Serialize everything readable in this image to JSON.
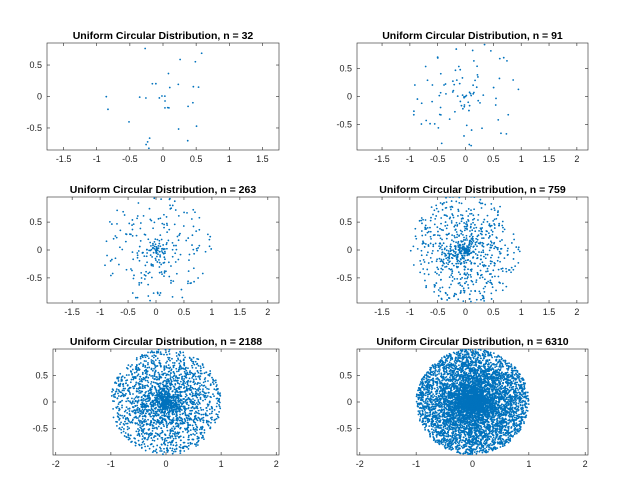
{
  "chart_data": [
    {
      "type": "scatter",
      "title": "Uniform Circular Distribution, n = 32",
      "n": 32,
      "color": "#0072BD",
      "marker": "dot",
      "radius": 1,
      "xlim": [
        -1.75,
        1.75
      ],
      "ylim": [
        -0.85,
        0.85
      ],
      "xticks": [
        -1.5,
        -1,
        -0.5,
        0,
        0.5,
        1,
        1.5
      ],
      "xtick_labels": [
        "-1.5",
        "-1",
        "-0.5",
        "0",
        "0.5",
        "1",
        "1.5"
      ],
      "yticks": [
        0.5,
        0,
        -0.5
      ],
      "ytick_labels": [
        "0.5",
        "0",
        "-0.5"
      ]
    },
    {
      "type": "scatter",
      "title": "Uniform Circular Distribution, n = 91",
      "n": 91,
      "color": "#0072BD",
      "marker": "dot",
      "radius": 1,
      "xlim": [
        -1.95,
        2.2
      ],
      "ylim": [
        -0.95,
        0.95
      ],
      "xticks": [
        -1.5,
        -1,
        -0.5,
        0,
        0.5,
        1,
        1.5,
        2
      ],
      "xtick_labels": [
        "-1.5",
        "-1",
        "-0.5",
        "0",
        "0.5",
        "1",
        "1.5",
        "2"
      ],
      "yticks": [
        0.5,
        0,
        -0.5
      ],
      "ytick_labels": [
        "0.5",
        "0",
        "-0.5"
      ]
    },
    {
      "type": "scatter",
      "title": "Uniform Circular Distribution, n = 263",
      "n": 263,
      "color": "#0072BD",
      "marker": "dot",
      "radius": 1,
      "xlim": [
        -1.95,
        2.2
      ],
      "ylim": [
        -0.95,
        0.95
      ],
      "xticks": [
        -1.5,
        -1,
        -0.5,
        0,
        0.5,
        1,
        1.5,
        2
      ],
      "xtick_labels": [
        "-1.5",
        "-1",
        "-0.5",
        "0",
        "0.5",
        "1",
        "1.5",
        "2"
      ],
      "yticks": [
        0.5,
        0,
        -0.5
      ],
      "ytick_labels": [
        "0.5",
        "0",
        "-0.5"
      ]
    },
    {
      "type": "scatter",
      "title": "Uniform Circular Distribution, n = 759",
      "n": 759,
      "color": "#0072BD",
      "marker": "dot",
      "radius": 1,
      "xlim": [
        -1.95,
        2.2
      ],
      "ylim": [
        -0.95,
        0.95
      ],
      "xticks": [
        -1.5,
        -1,
        -0.5,
        0,
        0.5,
        1,
        1.5,
        2
      ],
      "xtick_labels": [
        "-1.5",
        "-1",
        "-0.5",
        "0",
        "0.5",
        "1",
        "1.5",
        "2"
      ],
      "yticks": [
        0.5,
        0,
        -0.5
      ],
      "ytick_labels": [
        "0.5",
        "0",
        "-0.5"
      ]
    },
    {
      "type": "scatter",
      "title": "Uniform Circular Distribution, n = 2188",
      "n": 2188,
      "color": "#0072BD",
      "marker": "dot",
      "radius": 1,
      "xlim": [
        -2.05,
        2.05
      ],
      "ylim": [
        -1.0,
        1.0
      ],
      "xticks": [
        -2,
        -1,
        0,
        1,
        2
      ],
      "xtick_labels": [
        "-2",
        "-1",
        "0",
        "1",
        "2"
      ],
      "yticks": [
        0.5,
        0,
        -0.5
      ],
      "ytick_labels": [
        "0.5",
        "0",
        "-0.5"
      ]
    },
    {
      "type": "scatter",
      "title": "Uniform Circular Distribution, n = 6310",
      "n": 6310,
      "color": "#0072BD",
      "marker": "dot",
      "radius": 1,
      "xlim": [
        -2.05,
        2.05
      ],
      "ylim": [
        -1.0,
        1.0
      ],
      "xticks": [
        -2,
        -1,
        0,
        1,
        2
      ],
      "xtick_labels": [
        "-2",
        "-1",
        "0",
        "1",
        "2"
      ],
      "yticks": [
        0.5,
        0,
        -0.5
      ],
      "ytick_labels": [
        "0.5",
        "0",
        "-0.5"
      ]
    }
  ]
}
